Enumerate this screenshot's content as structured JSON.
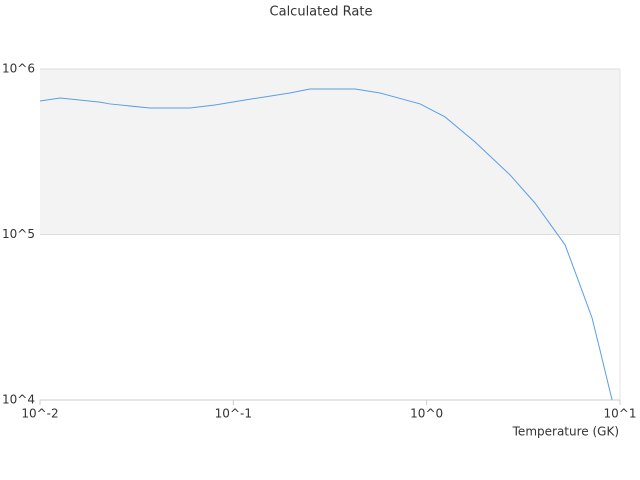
{
  "chart_data": {
    "type": "line",
    "title": "Calculated Rate",
    "x_label": "Temperature (GK)",
    "x": [
      0.01,
      0.0127,
      0.0204,
      0.023,
      0.037,
      0.0597,
      0.0803,
      0.115,
      0.196,
      0.249,
      0.427,
      0.574,
      0.925,
      1.245,
      1.78,
      2.7,
      3.63,
      5.2,
      6.21,
      7.17,
      7.88,
      9.1
    ],
    "values": [
      641000,
      668000,
      631000,
      615000,
      581000,
      581000,
      606000,
      650000,
      716000,
      757000,
      757000,
      716000,
      615000,
      513000,
      362000,
      229000,
      155000,
      86500,
      49500,
      31300,
      20000,
      10000
    ],
    "color": "#5a9ee6",
    "xlim": [
      0.01,
      10
    ],
    "ylim": [
      10000,
      1000000
    ],
    "xlog": true,
    "ylog": true,
    "grid": true,
    "xticks": [
      {
        "value": 0.01,
        "label": "10^-2"
      },
      {
        "value": 0.1,
        "label": "10^-1"
      },
      {
        "value": 1,
        "label": "10^0"
      },
      {
        "value": 10,
        "label": "10^1"
      }
    ],
    "yticks": [
      {
        "value": 10000,
        "label": "10^4"
      },
      {
        "value": 100000,
        "label": "10^5"
      },
      {
        "value": 1000000,
        "label": "10^6"
      }
    ]
  }
}
